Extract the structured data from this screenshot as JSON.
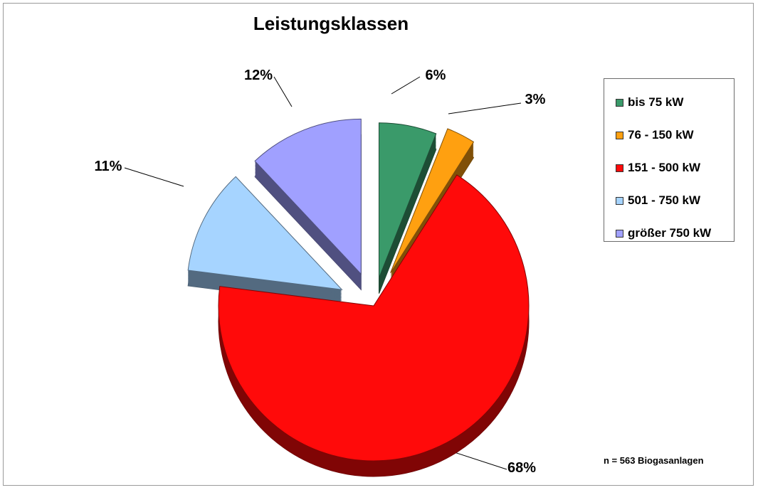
{
  "chart_data": {
    "type": "pie",
    "title": "Leistungsklassen",
    "categories": [
      "bis 75 kW",
      "76 - 150 kW",
      "151 - 500 kW",
      "501 - 750 kW",
      "größer 750 kW"
    ],
    "values": [
      6,
      3,
      68,
      11,
      12
    ],
    "value_labels": [
      "6%",
      "3%",
      "68%",
      "11%",
      "12%"
    ],
    "colors": [
      "#3a9a6a",
      "#ffa010",
      "#ff0a0a",
      "#a6d4ff",
      "#a0a0ff"
    ],
    "legend_position": "right",
    "exploded": true,
    "style": "3D"
  },
  "note": "n = 563 Biogasanlagen"
}
